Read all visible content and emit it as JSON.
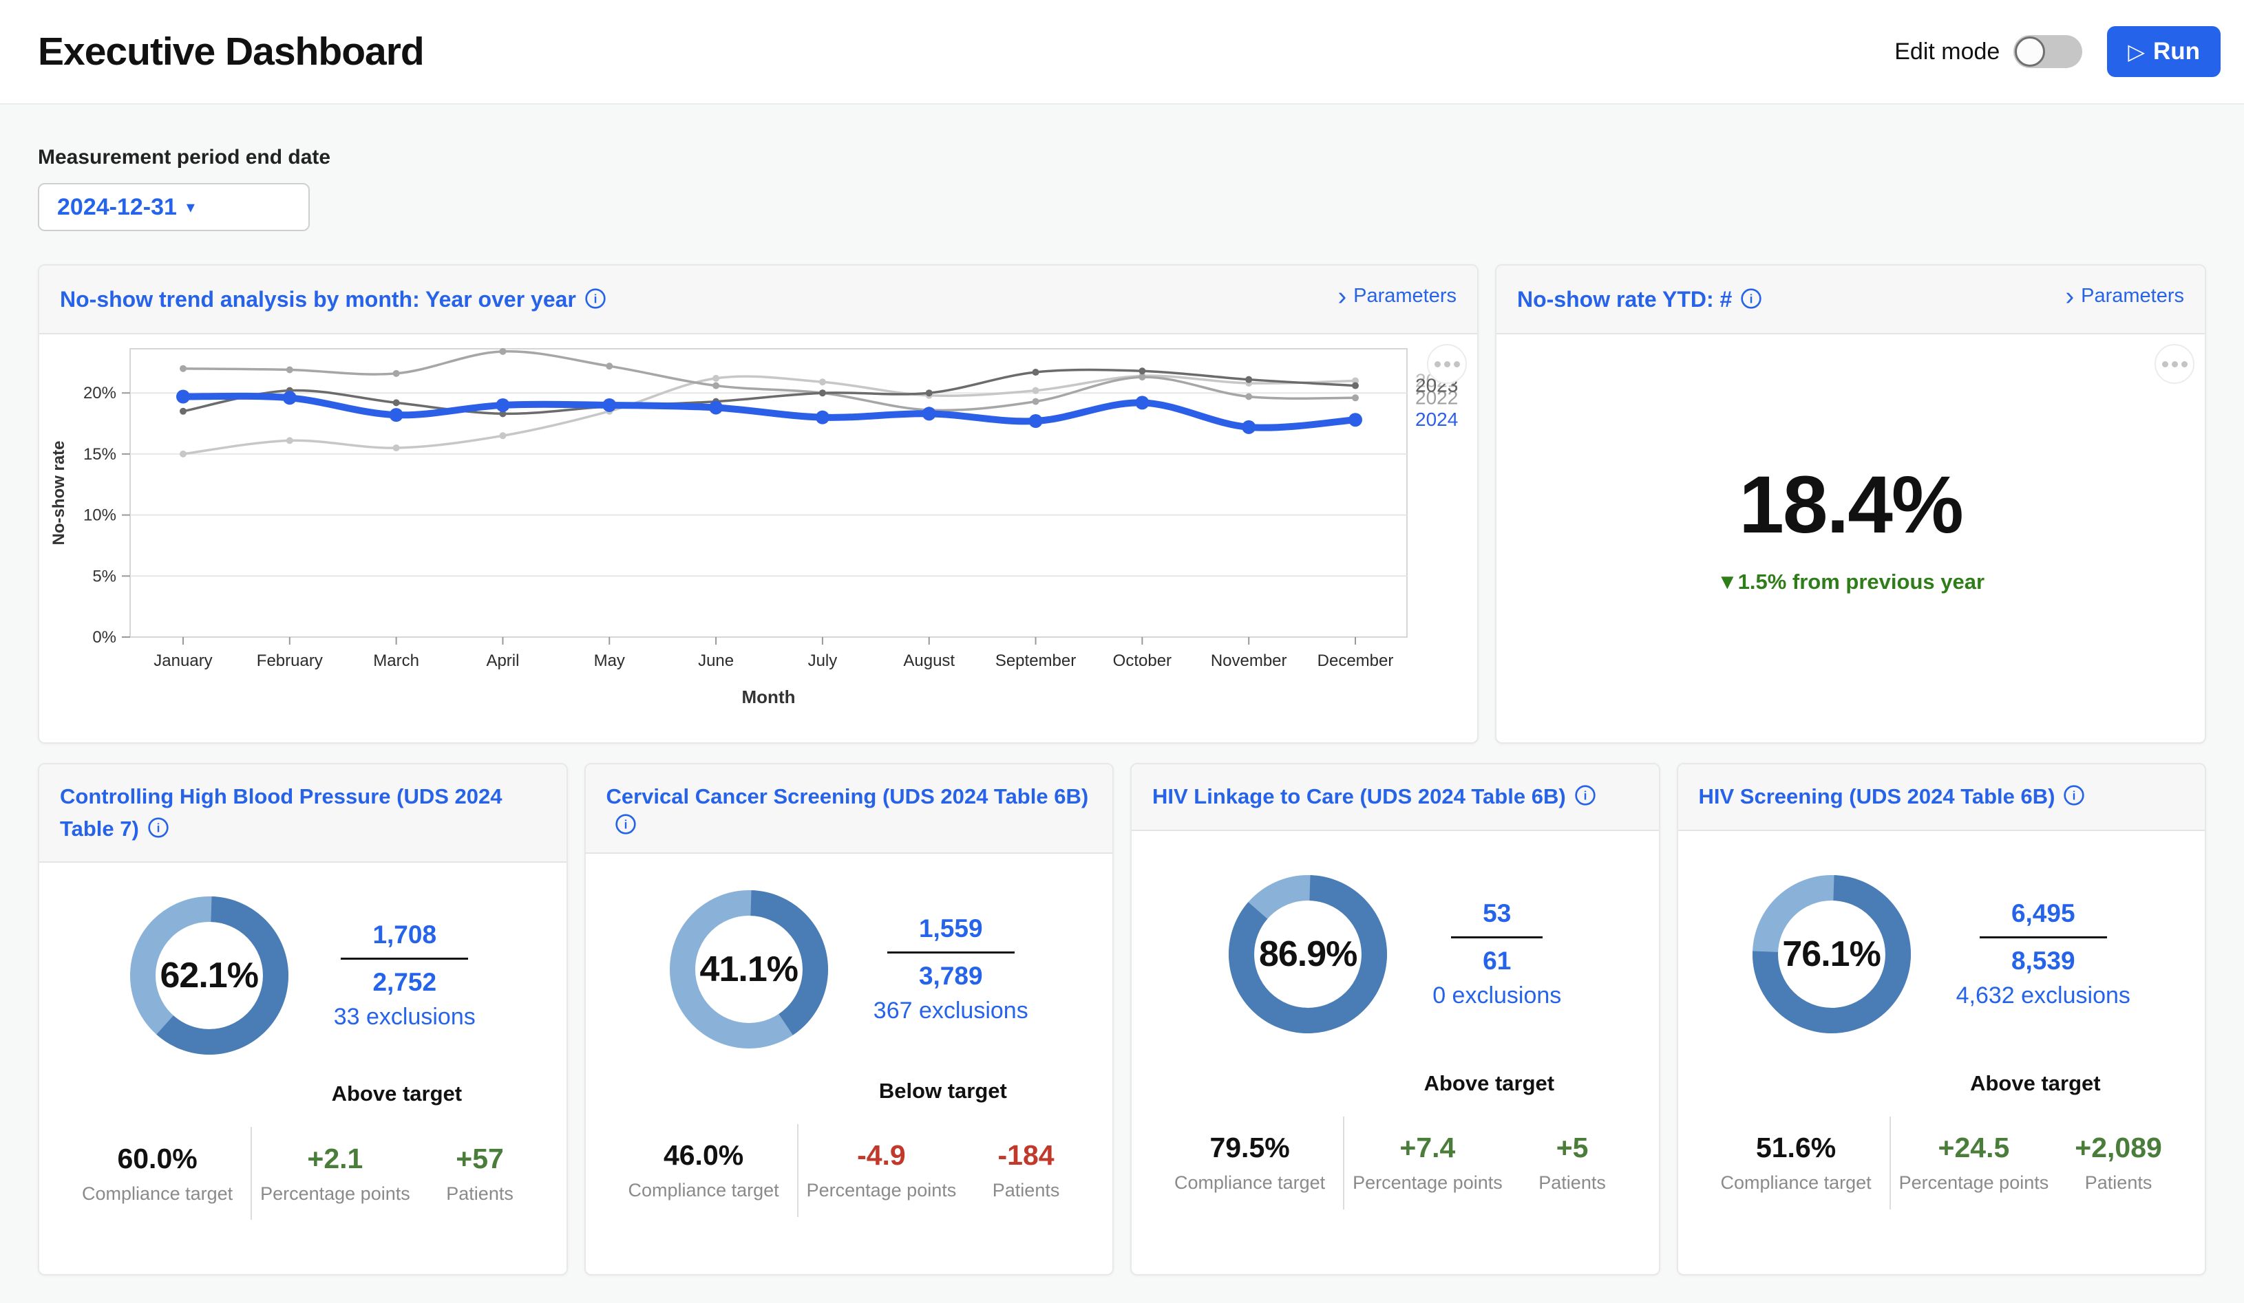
{
  "header": {
    "title": "Executive Dashboard",
    "edit_mode_label": "Edit mode",
    "run_label": "Run",
    "run_icon": "▷"
  },
  "filter": {
    "label": "Measurement period end date",
    "value": "2024-12-31"
  },
  "trend_panel": {
    "title": "No-show trend analysis by month: Year over year",
    "parameters_label": "Parameters"
  },
  "ytd_panel": {
    "title": "No-show rate YTD: #",
    "parameters_label": "Parameters",
    "value": "18.4%",
    "delta": "▼1.5% from previous year",
    "delta_color": "#2e7d19"
  },
  "chart_data": [
    {
      "type": "line",
      "title": "No-show trend analysis by month: Year over year",
      "xlabel": "Month",
      "ylabel": "No-show rate",
      "categories": [
        "January",
        "February",
        "March",
        "April",
        "May",
        "June",
        "July",
        "August",
        "September",
        "October",
        "November",
        "December"
      ],
      "y_tick_labels": [
        "0%",
        "5%",
        "10%",
        "15%",
        "20%"
      ],
      "y_tick_values": [
        0,
        5,
        10,
        15,
        20
      ],
      "ylim": [
        0,
        23.6
      ],
      "grid": true,
      "legend_position": "end-of-line-labels",
      "series": [
        {
          "name": "2021",
          "color": "#c7c7c7",
          "label_color": "#bdbdbd",
          "width": 3.5,
          "marker": 5,
          "values": [
            15.0,
            16.1,
            15.5,
            16.5,
            18.5,
            21.2,
            20.9,
            19.8,
            20.2,
            21.4,
            20.8,
            21.0
          ]
        },
        {
          "name": "2022",
          "color": "#a6a6a6",
          "label_color": "#9e9e9e",
          "width": 3.5,
          "marker": 5,
          "values": [
            22.0,
            21.9,
            21.6,
            23.4,
            22.2,
            20.6,
            20.0,
            18.6,
            19.3,
            21.3,
            19.7,
            19.6
          ]
        },
        {
          "name": "2023",
          "color": "#6b6b6b",
          "label_color": "#5f5f5f",
          "width": 3.5,
          "marker": 5,
          "values": [
            18.5,
            20.2,
            19.2,
            18.3,
            18.9,
            19.3,
            20.0,
            20.0,
            21.7,
            21.8,
            21.1,
            20.6
          ]
        },
        {
          "name": "2024",
          "color": "#2c5fe8",
          "label_color": "#2c5fe8",
          "width": 10,
          "marker": 10,
          "values": [
            19.7,
            19.6,
            18.2,
            19.0,
            19.0,
            18.8,
            18.0,
            18.3,
            17.7,
            19.2,
            17.2,
            17.8
          ]
        }
      ]
    },
    {
      "type": "pie",
      "title": "Controlling High Blood Pressure compliance",
      "values": [
        62.1,
        37.9
      ],
      "labels": [
        "compliant",
        "non-compliant"
      ]
    },
    {
      "type": "pie",
      "title": "Cervical Cancer Screening compliance",
      "values": [
        41.1,
        58.9
      ],
      "labels": [
        "compliant",
        "non-compliant"
      ]
    },
    {
      "type": "pie",
      "title": "HIV Linkage to Care compliance",
      "values": [
        86.9,
        13.1
      ],
      "labels": [
        "compliant",
        "non-compliant"
      ]
    },
    {
      "type": "pie",
      "title": "HIV Screening compliance",
      "values": [
        76.1,
        23.9
      ],
      "labels": [
        "compliant",
        "non-compliant"
      ]
    }
  ],
  "cards": [
    {
      "title": "Controlling High Blood Pressure (UDS 2024 Table 7)",
      "pct": 62.1,
      "pct_label": "62.1%",
      "numerator": "1,708",
      "denominator": "2,752",
      "exclusions": "33 exclusions",
      "status": "Above target",
      "target": "60.0%",
      "target_caption": "Compliance target",
      "pp": "+2.1",
      "pp_caption": "Percentage points",
      "patients": "+57",
      "patients_caption": "Patients",
      "delta_color": "#4a7d39"
    },
    {
      "title": "Cervical Cancer Screening (UDS 2024 Table 6B)",
      "pct": 41.1,
      "pct_label": "41.1%",
      "numerator": "1,559",
      "denominator": "3,789",
      "exclusions": "367 exclusions",
      "status": "Below target",
      "target": "46.0%",
      "target_caption": "Compliance target",
      "pp": "-4.9",
      "pp_caption": "Percentage points",
      "patients": "-184",
      "patients_caption": "Patients",
      "delta_color": "#c0392b"
    },
    {
      "title": "HIV Linkage to Care (UDS 2024 Table 6B)",
      "pct": 86.9,
      "pct_label": "86.9%",
      "numerator": "53",
      "denominator": "61",
      "exclusions": "0 exclusions",
      "status": "Above target",
      "target": "79.5%",
      "target_caption": "Compliance target",
      "pp": "+7.4",
      "pp_caption": "Percentage points",
      "patients": "+5",
      "patients_caption": "Patients",
      "delta_color": "#4a7d39"
    },
    {
      "title": "HIV Screening (UDS 2024 Table 6B)",
      "pct": 76.1,
      "pct_label": "76.1%",
      "numerator": "6,495",
      "denominator": "8,539",
      "exclusions": "4,632 exclusions",
      "status": "Above target",
      "target": "51.6%",
      "target_caption": "Compliance target",
      "pp": "+24.5",
      "pp_caption": "Percentage points",
      "patients": "+2,089",
      "patients_caption": "Patients",
      "delta_color": "#4a7d39"
    }
  ],
  "colors": {
    "accent_blue": "#2763e8",
    "donut_dark": "#4a7db5",
    "donut_light": "#8ab2d9",
    "positive_green": "#4a7d39",
    "negative_red": "#c0392b",
    "gridline": "#e7e7e7",
    "axis": "#999999"
  }
}
